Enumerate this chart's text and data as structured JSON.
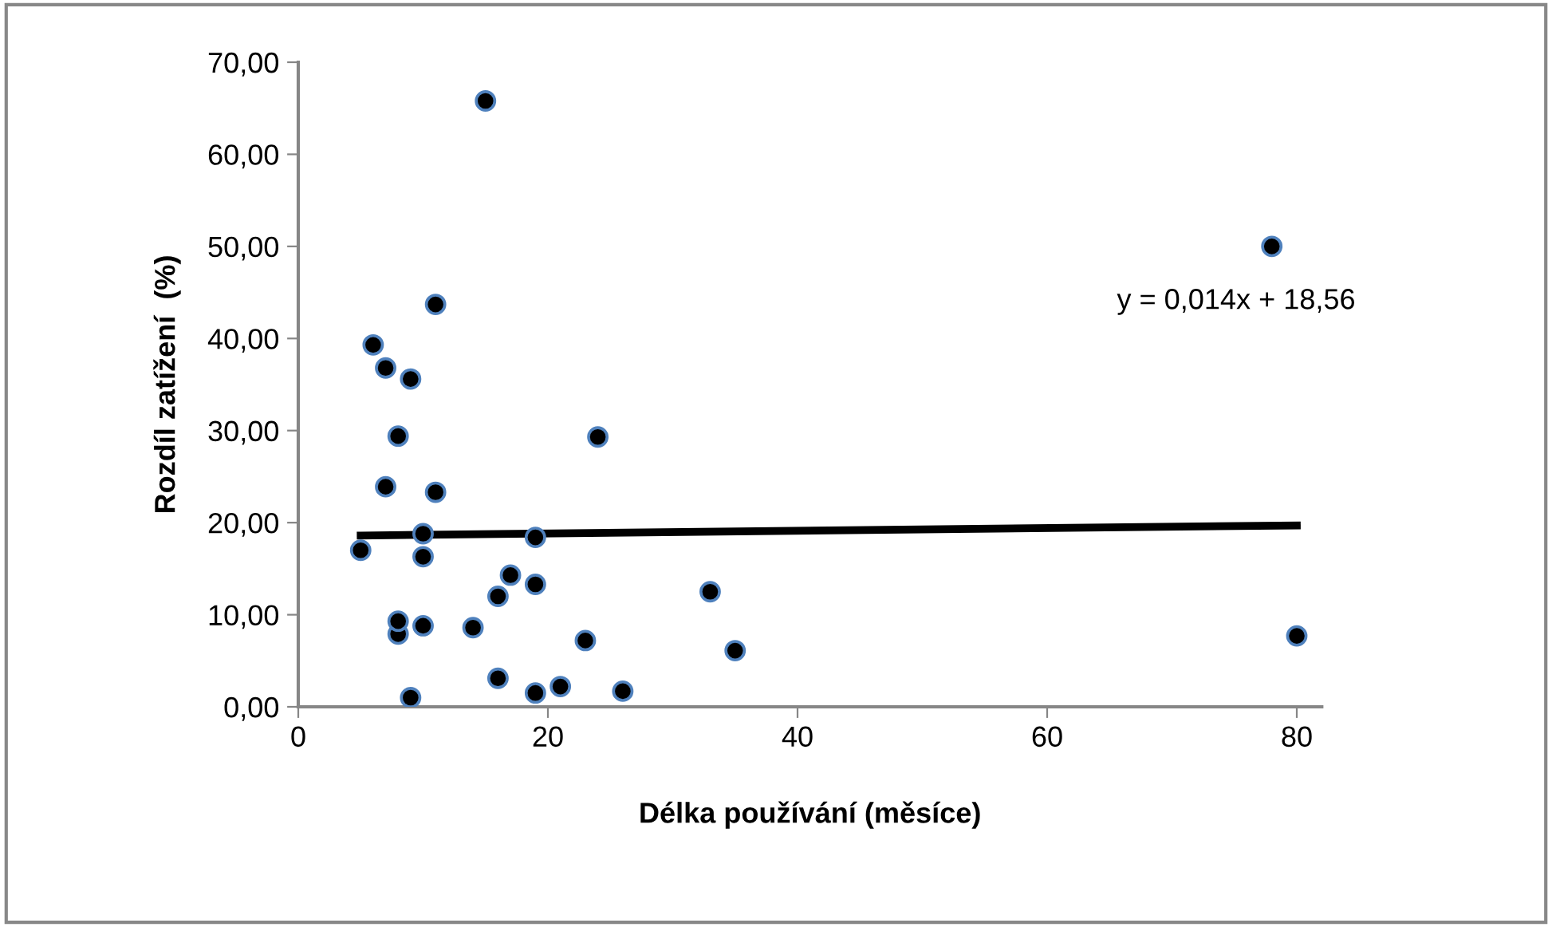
{
  "chart_data": {
    "type": "scatter",
    "xlabel": "Délka používání (měsíce)",
    "ylabel": "Rozdíl zatížení  (%)",
    "xlim": [
      0,
      82
    ],
    "ylim": [
      0,
      70
    ],
    "xticks": [
      0,
      20,
      40,
      60,
      80
    ],
    "yticks": [
      {
        "value": 0,
        "label": "0,00"
      },
      {
        "value": 10,
        "label": "10,00"
      },
      {
        "value": 20,
        "label": "20,00"
      },
      {
        "value": 30,
        "label": "30,00"
      },
      {
        "value": 40,
        "label": "40,00"
      },
      {
        "value": 50,
        "label": "50,00"
      },
      {
        "value": 60,
        "label": "60,00"
      },
      {
        "value": 70,
        "label": "70,00"
      }
    ],
    "grid": false,
    "legend": false,
    "series": [
      {
        "marker": "circle",
        "color": "#000000",
        "x": [
          5,
          6,
          7,
          7,
          8,
          8,
          8,
          9,
          9,
          10,
          10,
          10,
          11,
          11,
          14,
          15,
          16,
          16,
          17,
          19,
          19,
          19,
          21,
          23,
          24,
          26,
          33,
          35,
          78,
          80
        ],
        "values": [
          17.0,
          39.3,
          36.8,
          23.9,
          29.4,
          7.9,
          9.3,
          35.6,
          1.0,
          18.8,
          16.3,
          8.8,
          43.7,
          23.3,
          8.6,
          65.8,
          12.0,
          3.1,
          14.3,
          18.4,
          13.3,
          1.5,
          2.2,
          7.2,
          29.3,
          1.7,
          12.5,
          6.1,
          50.0,
          7.7
        ]
      },
      {
        "type": "line",
        "color": "#000000",
        "x": [
          5,
          80
        ],
        "values": [
          18.6,
          19.7
        ]
      }
    ],
    "annotations": [
      "y = 0,014x + 18,56"
    ]
  }
}
